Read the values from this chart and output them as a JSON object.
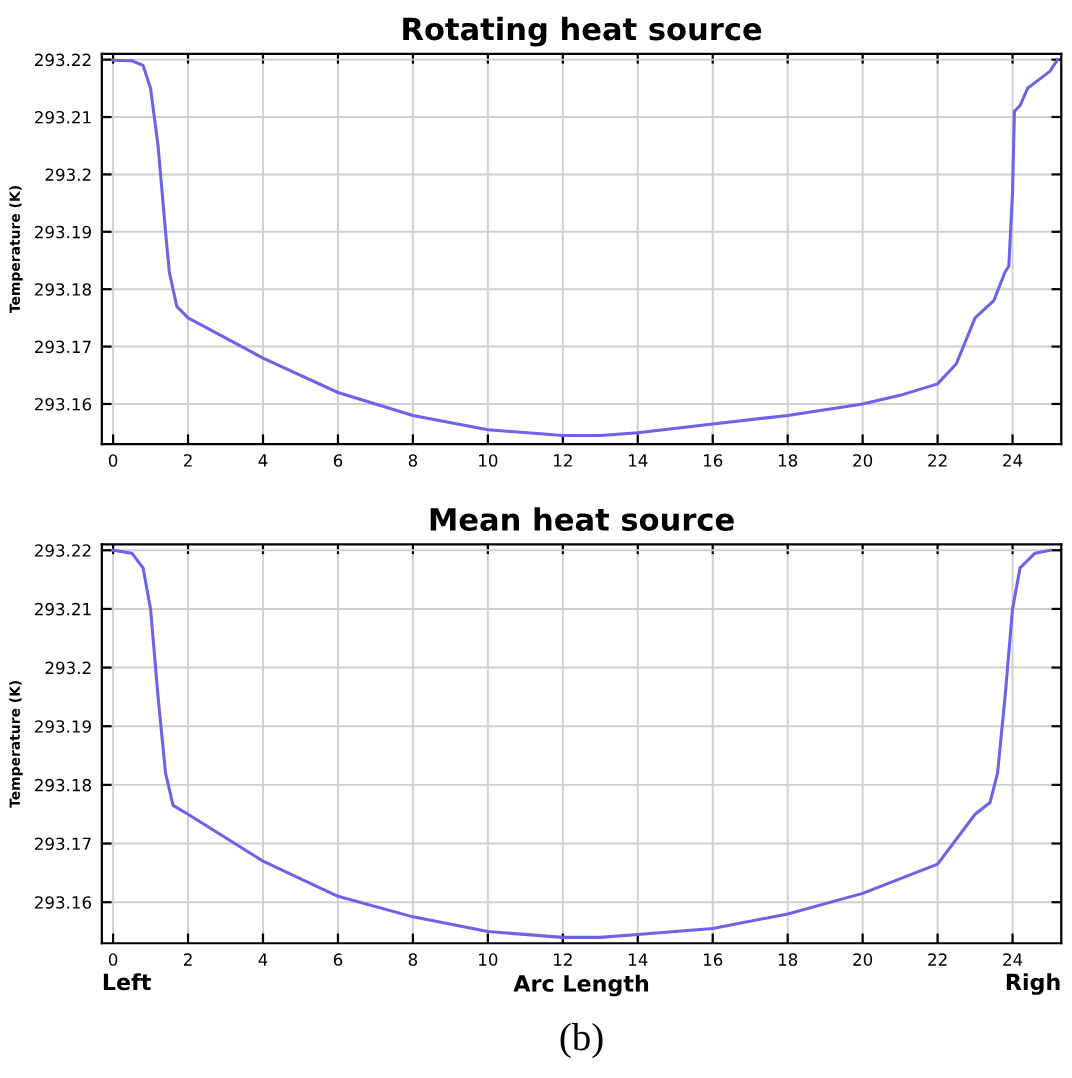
{
  "chart_data": [
    {
      "type": "line",
      "title": "Rotating heat source",
      "ylabel": "Temperature (K)",
      "x": [
        0,
        0.5,
        0.8,
        1.0,
        1.2,
        1.4,
        1.5,
        1.7,
        2,
        4,
        6,
        8,
        10,
        12,
        13,
        14,
        16,
        18,
        20,
        21,
        22,
        22.5,
        23,
        23.5,
        23.8,
        23.9,
        24,
        24.05,
        24.2,
        24.4,
        24.6,
        24.8,
        25,
        25.2
      ],
      "series": [
        {
          "color": "#6b63e8",
          "values": [
            293.2199,
            293.2198,
            293.219,
            293.215,
            293.205,
            293.19,
            293.183,
            293.177,
            293.175,
            293.168,
            293.162,
            293.158,
            293.1555,
            293.1545,
            293.1545,
            293.155,
            293.1565,
            293.158,
            293.16,
            293.1615,
            293.1635,
            293.167,
            293.175,
            293.178,
            293.183,
            293.184,
            293.197,
            293.211,
            293.212,
            293.215,
            293.216,
            293.217,
            293.218,
            293.22
          ]
        }
      ],
      "xlim": [
        -0.3,
        25.3
      ],
      "ylim": [
        293.153,
        293.221
      ],
      "xticks": [
        0,
        2,
        4,
        6,
        8,
        10,
        12,
        14,
        16,
        18,
        20,
        22,
        24
      ],
      "yticks": [
        293.16,
        293.17,
        293.18,
        293.19,
        293.2,
        293.21,
        293.22
      ],
      "grid": true,
      "marker": "none",
      "line_style": "solid"
    },
    {
      "type": "line",
      "title": "Mean heat source",
      "ylabel": "Temperature (K)",
      "xlabel": "Arc Length",
      "x": [
        0,
        0.5,
        0.8,
        1.0,
        1.2,
        1.4,
        1.6,
        2,
        4,
        6,
        8,
        10,
        12,
        13,
        14,
        16,
        18,
        20,
        22,
        23,
        23.4,
        23.6,
        23.8,
        24,
        24.2,
        24.6,
        25
      ],
      "series": [
        {
          "color": "#6b63e8",
          "values": [
            293.22,
            293.2195,
            293.217,
            293.21,
            293.195,
            293.182,
            293.1765,
            293.175,
            293.167,
            293.161,
            293.1575,
            293.155,
            293.154,
            293.154,
            293.1545,
            293.1555,
            293.158,
            293.1615,
            293.1665,
            293.175,
            293.177,
            293.182,
            293.195,
            293.21,
            293.217,
            293.2195,
            293.22
          ]
        }
      ],
      "xlim": [
        -0.3,
        25.3
      ],
      "ylim": [
        293.153,
        293.221
      ],
      "xticks": [
        0,
        2,
        4,
        6,
        8,
        10,
        12,
        14,
        16,
        18,
        20,
        22,
        24
      ],
      "yticks": [
        293.16,
        293.17,
        293.18,
        293.19,
        293.2,
        293.21,
        293.22
      ],
      "grid": true,
      "marker": "none",
      "line_style": "solid",
      "annotations": [
        "Left",
        "Righ",
        "(b)"
      ]
    }
  ]
}
